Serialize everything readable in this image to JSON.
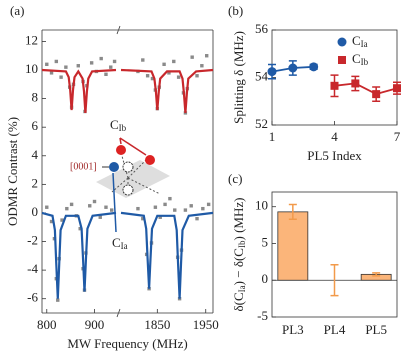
{
  "chart_data": [
    {
      "type": "scatter",
      "label": "(a)",
      "xlabel": "MW Frequency (MHz)",
      "ylabel": "ODMR Contrast (%)",
      "xlim": [
        790,
        1965
      ],
      "x_break": [
        945,
        1775
      ],
      "xticks": [
        800,
        900,
        1850,
        1950
      ],
      "ylim": [
        -7,
        12.8
      ],
      "yticks": [
        -6,
        -4,
        -2,
        0,
        2,
        4,
        6,
        8,
        10,
        12
      ],
      "annotations": [
        {
          "text": "CIb"
        },
        {
          "text": "CIa"
        },
        {
          "text": "[0001]"
        }
      ],
      "series": [
        {
          "style": "points",
          "color": "#8a8a8a",
          "x": [
            800,
            810,
            820,
            830,
            840,
            848,
            852,
            856,
            866,
            876,
            880,
            884,
            894,
            904,
            914,
            924,
            934,
            942,
            1810,
            1820,
            1830,
            1840,
            1846,
            1850,
            1854,
            1864,
            1874,
            1884,
            1894,
            1904,
            1908,
            1912,
            1922,
            1932,
            1942,
            1952
          ],
          "values": [
            10.4,
            9.8,
            10.6,
            9.5,
            10.2,
            8.8,
            7.4,
            9.0,
            10.3,
            9.2,
            7.1,
            8.9,
            10.5,
            9.9,
            10.8,
            9.7,
            10.2,
            10.6,
            9.9,
            10.7,
            9.6,
            9.4,
            8.6,
            7.3,
            8.8,
            10.4,
            9.8,
            10.6,
            9.5,
            8.4,
            7.0,
            8.7,
            10.9,
            9.6,
            10.3,
            11.0
          ]
        },
        {
          "style": "points",
          "color": "#8a8a8a",
          "x": [
            800,
            810,
            816,
            820,
            823,
            826,
            832,
            842,
            852,
            862,
            870,
            876,
            879,
            882,
            890,
            900,
            912,
            924,
            936,
            1810,
            1820,
            1828,
            1833,
            1838,
            1846,
            1856,
            1866,
            1876,
            1886,
            1892,
            1896,
            1900,
            1908,
            1920,
            1932,
            1944,
            1956
          ],
          "values": [
            0.4,
            -0.6,
            -1.8,
            -4.6,
            -6.1,
            -3.2,
            -0.5,
            0.3,
            0.6,
            -0.2,
            -1.1,
            -3.9,
            -5.4,
            -2.8,
            0.5,
            0.8,
            -0.3,
            0.4,
            0.2,
            0.3,
            -0.4,
            -2.9,
            -5.3,
            -2.1,
            0.4,
            -0.3,
            0.6,
            1.0,
            0.2,
            -3.1,
            -6.0,
            -2.6,
            0.2,
            0.5,
            -0.4,
            0.3,
            0.6
          ]
        },
        {
          "style": "line",
          "color": "#c8282c",
          "x": [
            790,
            840,
            846,
            849,
            852,
            855,
            858,
            866,
            875,
            878,
            881,
            884,
            887,
            895,
            945
          ],
          "values": [
            10,
            9.9,
            9.5,
            8.6,
            7.2,
            8.6,
            9.5,
            9.9,
            9.4,
            8.5,
            7.0,
            8.5,
            9.4,
            9.9,
            10
          ]
        },
        {
          "style": "line",
          "color": "#c8282c",
          "x": [
            1775,
            1838,
            1844,
            1847,
            1850,
            1853,
            1856,
            1870,
            1896,
            1902,
            1905,
            1908,
            1911,
            1914,
            1930,
            1965
          ],
          "values": [
            10,
            9.9,
            9.4,
            8.5,
            7.2,
            8.5,
            9.4,
            9.9,
            9.9,
            9.4,
            8.4,
            7.0,
            8.4,
            9.4,
            9.9,
            10
          ]
        },
        {
          "style": "line",
          "color": "#1f5aa6",
          "x": [
            790,
            812,
            817,
            820,
            823,
            826,
            829,
            840,
            866,
            873,
            876,
            879,
            882,
            885,
            896,
            945
          ],
          "values": [
            0,
            -0.2,
            -1.2,
            -3.6,
            -6.0,
            -3.6,
            -1.2,
            -0.2,
            -0.2,
            -1.1,
            -3.3,
            -5.5,
            -3.3,
            -1.1,
            -0.2,
            0
          ]
        },
        {
          "style": "line",
          "color": "#1f5aa6",
          "x": [
            1775,
            1822,
            1827,
            1830,
            1833,
            1836,
            1839,
            1850,
            1885,
            1890,
            1893,
            1896,
            1899,
            1902,
            1915,
            1965
          ],
          "values": [
            0,
            -0.2,
            -1.1,
            -3.2,
            -5.3,
            -3.2,
            -1.1,
            -0.2,
            -0.2,
            -1.2,
            -3.6,
            -6.0,
            -3.6,
            -1.2,
            -0.2,
            0
          ]
        }
      ]
    },
    {
      "type": "errorline",
      "label": "(b)",
      "xlabel": "PL5 Index",
      "ylabel": "Splitting δ (MHz)",
      "xlim": [
        1,
        7
      ],
      "xticks": [
        1,
        4,
        7
      ],
      "ylim": [
        52,
        56
      ],
      "yticks": [
        52,
        54,
        56
      ],
      "legend": "top-right",
      "series": [
        {
          "name": "CIa",
          "color": "#1f5aa6",
          "marker": "circle",
          "x": [
            1,
            2,
            3
          ],
          "values": [
            54.25,
            54.4,
            54.45
          ],
          "errors": [
            0.3,
            0.3,
            0.1
          ]
        },
        {
          "name": "CIb",
          "color": "#c8282c",
          "marker": "square",
          "x": [
            4,
            5,
            6,
            7
          ],
          "values": [
            53.65,
            53.75,
            53.3,
            53.55
          ],
          "errors": [
            0.45,
            0.3,
            0.3,
            0.25
          ]
        }
      ]
    },
    {
      "type": "bar",
      "label": "(c)",
      "ylabel": "δ(CIa) − δ(CIb) (MHz)",
      "categories": [
        "PL3",
        "PL4",
        "PL5"
      ],
      "values": [
        9.3,
        0,
        0.8
      ],
      "errors": [
        1.0,
        2.1,
        0.2
      ],
      "color": "#fbb57a",
      "error_color": "#f29a4a",
      "ylim": [
        -5,
        12
      ],
      "yticks": [
        -5,
        0,
        5,
        10
      ]
    }
  ]
}
